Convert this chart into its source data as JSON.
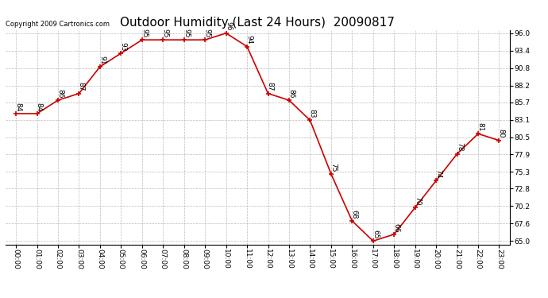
{
  "title": "Outdoor Humidity (Last 24 Hours)  20090817",
  "copyright": "Copyright 2009 Cartronics.com",
  "hours": [
    0,
    1,
    2,
    3,
    4,
    5,
    6,
    7,
    8,
    9,
    10,
    11,
    12,
    13,
    14,
    15,
    16,
    17,
    18,
    19,
    20,
    21,
    22,
    23
  ],
  "values": [
    84,
    84,
    86,
    87,
    91,
    93,
    95,
    95,
    95,
    95,
    96,
    94,
    87,
    86,
    83,
    75,
    68,
    65,
    66,
    70,
    74,
    78,
    81,
    80
  ],
  "x_labels": [
    "00:00",
    "01:00",
    "02:00",
    "03:00",
    "04:00",
    "05:00",
    "06:00",
    "07:00",
    "08:00",
    "09:00",
    "10:00",
    "11:00",
    "12:00",
    "13:00",
    "14:00",
    "15:00",
    "16:00",
    "17:00",
    "18:00",
    "19:00",
    "20:00",
    "21:00",
    "22:00",
    "23:00"
  ],
  "y_ticks": [
    65.0,
    67.6,
    70.2,
    72.8,
    75.3,
    77.9,
    80.5,
    83.1,
    85.7,
    88.2,
    90.8,
    93.4,
    96.0
  ],
  "y_min": 64.5,
  "y_max": 96.5,
  "line_color": "#cc0000",
  "marker_color": "#cc0000",
  "bg_color": "#ffffff",
  "grid_color": "#bbbbbb",
  "title_fontsize": 11,
  "label_fontsize": 6.5,
  "annotation_fontsize": 6.5,
  "copyright_fontsize": 6
}
